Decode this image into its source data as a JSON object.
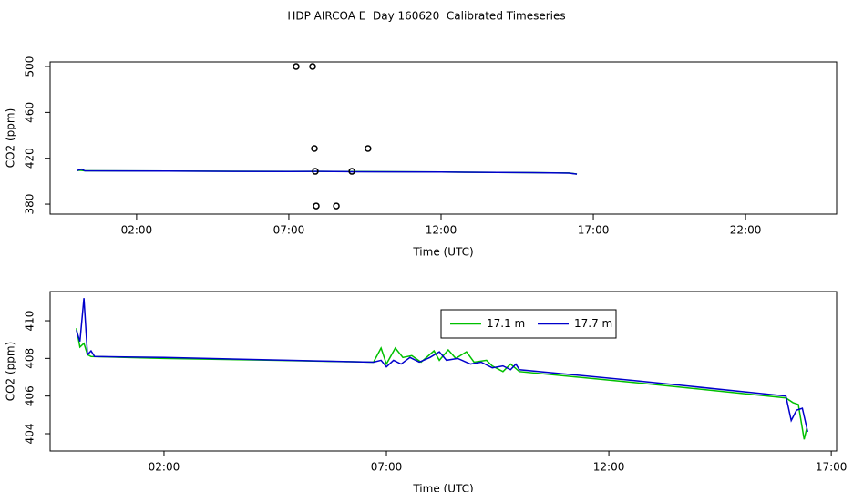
{
  "title": "HDP AIRCOA E  Day 160620  Calibrated Timeseries",
  "chart_data": [
    {
      "type": "line",
      "xlabel": "Time (UTC)",
      "ylabel": "CO2 (ppm)",
      "xlim": [
        -0.84,
        24.99
      ],
      "xticks": [
        {
          "value": 2,
          "label": "02:00"
        },
        {
          "value": 7,
          "label": "07:00"
        },
        {
          "value": 12,
          "label": "12:00"
        },
        {
          "value": 17,
          "label": "17:00"
        },
        {
          "value": 22,
          "label": "22:00"
        }
      ],
      "ylim": [
        371.3,
        504
      ],
      "yticks": [
        380,
        420,
        460,
        500
      ],
      "series": [
        {
          "color": "#00c000",
          "x": [
            0.05,
            0.15,
            0.3,
            3,
            7,
            8,
            9,
            12,
            15,
            16.2,
            16.46
          ],
          "values": [
            409.3,
            409.5,
            409,
            408.8,
            408.5,
            408.5,
            408.4,
            408,
            407.5,
            407.2,
            406.3
          ]
        },
        {
          "color": "#0000cc",
          "x": [
            0.05,
            0.2,
            0.3,
            3,
            7,
            8,
            9,
            12,
            15,
            16.2,
            16.46
          ],
          "values": [
            409.3,
            410.5,
            409,
            408.8,
            408.4,
            408.5,
            408.3,
            408,
            407.5,
            407.1,
            406.2
          ]
        },
        {
          "color": "#000000",
          "marker": "circle",
          "x": [
            7.24,
            7.78,
            7.84,
            9.6,
            7.87,
            9.07,
            7.9,
            8.56
          ],
          "values": [
            500,
            500,
            428.5,
            428.5,
            408.6,
            408.6,
            378.4,
            378.4
          ]
        }
      ]
    },
    {
      "type": "line",
      "xlabel": "Time (UTC)",
      "ylabel": "CO2 (ppm)",
      "xlim": [
        -0.56,
        17.12
      ],
      "xticks": [
        {
          "value": 2,
          "label": "02:00"
        },
        {
          "value": 7,
          "label": "07:00"
        },
        {
          "value": 12,
          "label": "12:00"
        },
        {
          "value": 17,
          "label": "17:00"
        }
      ],
      "ylim": [
        403.08,
        411.55
      ],
      "yticks": [
        404,
        406,
        408,
        410
      ],
      "legend": "top",
      "series": [
        {
          "name": "17.1 m",
          "color": "#00c000",
          "x": [
            0.03,
            0.11,
            0.2,
            0.28,
            0.36,
            2,
            4.46,
            6.71,
            6.88,
            7.0,
            7.2,
            7.37,
            7.57,
            7.78,
            8.07,
            8.19,
            8.39,
            8.56,
            8.8,
            8.97,
            9.25,
            9.38,
            9.62,
            9.79,
            9.99,
            12.66,
            15.98,
            16.14,
            16.26,
            16.39,
            16.45
          ],
          "values": [
            409.6,
            408.6,
            408.8,
            408.2,
            408.1,
            408.0,
            407.9,
            407.8,
            408.55,
            407.7,
            408.55,
            408.05,
            408.15,
            407.8,
            408.4,
            407.9,
            408.45,
            408.0,
            408.35,
            407.8,
            407.9,
            407.6,
            407.3,
            407.7,
            407.3,
            406.7,
            405.9,
            405.65,
            405.55,
            403.7,
            404.3
          ]
        },
        {
          "name": "17.7 m",
          "color": "#0000cc",
          "x": [
            0.03,
            0.11,
            0.2,
            0.28,
            0.36,
            0.44,
            2,
            6.71,
            6.88,
            7.0,
            7.16,
            7.33,
            7.53,
            7.74,
            7.98,
            8.19,
            8.35,
            8.6,
            8.89,
            9.13,
            9.38,
            9.62,
            9.79,
            9.91,
            9.99,
            12.66,
            15.98,
            16.1,
            16.22,
            16.35,
            16.47
          ],
          "values": [
            409.5,
            408.9,
            411.2,
            408.2,
            408.4,
            408.1,
            408.05,
            407.8,
            407.9,
            407.55,
            407.9,
            407.7,
            408.05,
            407.8,
            408.05,
            408.35,
            407.9,
            408.0,
            407.7,
            407.8,
            407.5,
            407.6,
            407.4,
            407.7,
            407.4,
            406.8,
            406.0,
            404.7,
            405.25,
            405.35,
            404.1
          ]
        }
      ]
    }
  ]
}
